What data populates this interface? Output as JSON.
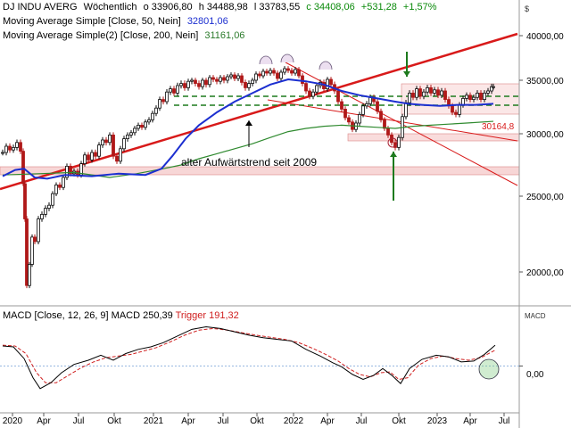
{
  "header": {
    "title": "DJ INDU AVERG",
    "period": "Wöchentlich",
    "open": "o 33906,80",
    "high": "h 34488,98",
    "low": "l 33783,55",
    "close": "c 34408,06",
    "change": "+531,28",
    "change_pct": "+1,57%",
    "ma1_label": "Moving Average Simple [Close, 50, Nein]",
    "ma1_value": "32801,06",
    "ma2_label": "Moving Average Simple(2) [Close, 200, Nein]",
    "ma2_value": "31161,06",
    "currency": "$"
  },
  "annotations": {
    "trend_text": "alter Aufwärtstrend seit 2009",
    "support_value": "30164,8"
  },
  "macd": {
    "label": "MACD [Close, 12, 26, 9]",
    "macd_text": "MACD 250,39",
    "trigger_text": "Trigger 191,32",
    "axis_label": "MACD",
    "zero_label": "0,00"
  },
  "chart_data": {
    "type": "candlestick",
    "x_ticks": [
      "2020",
      "Apr",
      "Jul",
      "Okt",
      "2021",
      "Apr",
      "Jul",
      "Okt",
      "2022",
      "Apr",
      "Jul",
      "Okt",
      "2023",
      "Apr",
      "Jul"
    ],
    "y_ticks": [
      "40000,00",
      "35000,00",
      "30000,00",
      "25000,00",
      "20000,00"
    ],
    "y_tick_values": [
      40000,
      35000,
      30000,
      25000,
      20000
    ],
    "ylim": [
      16000,
      42500
    ],
    "close_path": [
      [
        0,
        28500
      ],
      [
        4,
        29000
      ],
      [
        8,
        28700
      ],
      [
        12,
        28900
      ],
      [
        16,
        29300
      ],
      [
        20,
        28600
      ],
      [
        23,
        26000
      ],
      [
        25,
        23500
      ],
      [
        27,
        19200
      ],
      [
        30,
        20500
      ],
      [
        33,
        22300
      ],
      [
        36,
        22000
      ],
      [
        40,
        23500
      ],
      [
        44,
        23800
      ],
      [
        48,
        24200
      ],
      [
        52,
        24400
      ],
      [
        56,
        25200
      ],
      [
        60,
        25900
      ],
      [
        64,
        25700
      ],
      [
        68,
        26500
      ],
      [
        72,
        27400
      ],
      [
        76,
        26800
      ],
      [
        80,
        27000
      ],
      [
        84,
        26700
      ],
      [
        88,
        27600
      ],
      [
        92,
        28300
      ],
      [
        96,
        27900
      ],
      [
        100,
        28500
      ],
      [
        104,
        28200
      ],
      [
        108,
        29100
      ],
      [
        112,
        29500
      ],
      [
        116,
        29300
      ],
      [
        120,
        29900
      ],
      [
        124,
        28200
      ],
      [
        128,
        27800
      ],
      [
        132,
        28800
      ],
      [
        136,
        29600
      ],
      [
        140,
        29900
      ],
      [
        144,
        30100
      ],
      [
        148,
        30500
      ],
      [
        152,
        30800
      ],
      [
        156,
        30600
      ],
      [
        160,
        31100
      ],
      [
        164,
        31300
      ],
      [
        168,
        31900
      ],
      [
        172,
        32400
      ],
      [
        176,
        33200
      ],
      [
        180,
        33000
      ],
      [
        184,
        33900
      ],
      [
        188,
        34200
      ],
      [
        192,
        33800
      ],
      [
        196,
        34500
      ],
      [
        200,
        34700
      ],
      [
        204,
        34300
      ],
      [
        208,
        34900
      ],
      [
        212,
        35000
      ],
      [
        216,
        34700
      ],
      [
        220,
        34400
      ],
      [
        224,
        35000
      ],
      [
        228,
        34600
      ],
      [
        232,
        35300
      ],
      [
        236,
        35100
      ],
      [
        240,
        34900
      ],
      [
        244,
        35300
      ],
      [
        248,
        35000
      ],
      [
        252,
        35400
      ],
      [
        256,
        35600
      ],
      [
        260,
        35200
      ],
      [
        264,
        35500
      ],
      [
        268,
        34800
      ],
      [
        272,
        34300
      ],
      [
        276,
        34700
      ],
      [
        280,
        35000
      ],
      [
        284,
        35700
      ],
      [
        288,
        35500
      ],
      [
        292,
        36000
      ],
      [
        296,
        35800
      ],
      [
        300,
        36100
      ],
      [
        304,
        35800
      ],
      [
        308,
        35200
      ],
      [
        312,
        35900
      ],
      [
        316,
        36300
      ],
      [
        320,
        36100
      ],
      [
        324,
        35800
      ],
      [
        328,
        36200
      ],
      [
        332,
        35500
      ],
      [
        336,
        34700
      ],
      [
        340,
        34000
      ],
      [
        344,
        33500
      ],
      [
        348,
        33900
      ],
      [
        352,
        34500
      ],
      [
        356,
        34800
      ],
      [
        360,
        34200
      ],
      [
        364,
        35100
      ],
      [
        368,
        34600
      ],
      [
        372,
        34000
      ],
      [
        376,
        33000
      ],
      [
        380,
        32300
      ],
      [
        384,
        31500
      ],
      [
        388,
        31100
      ],
      [
        392,
        30400
      ],
      [
        396,
        31000
      ],
      [
        400,
        31800
      ],
      [
        404,
        32600
      ],
      [
        408,
        32800
      ],
      [
        412,
        33400
      ],
      [
        416,
        33000
      ],
      [
        420,
        32100
      ],
      [
        424,
        31300
      ],
      [
        428,
        30500
      ],
      [
        432,
        29900
      ],
      [
        436,
        29300
      ],
      [
        440,
        28900
      ],
      [
        444,
        29700
      ],
      [
        448,
        31600
      ],
      [
        452,
        32900
      ],
      [
        456,
        33800
      ],
      [
        460,
        33400
      ],
      [
        464,
        34200
      ],
      [
        468,
        33500
      ],
      [
        472,
        33900
      ],
      [
        476,
        34300
      ],
      [
        480,
        33800
      ],
      [
        484,
        34100
      ],
      [
        488,
        33600
      ],
      [
        492,
        34000
      ],
      [
        496,
        33200
      ],
      [
        500,
        32600
      ],
      [
        504,
        32000
      ],
      [
        508,
        31800
      ],
      [
        512,
        32700
      ],
      [
        516,
        33300
      ],
      [
        520,
        33600
      ],
      [
        524,
        33200
      ],
      [
        528,
        33400
      ],
      [
        532,
        33800
      ],
      [
        536,
        33200
      ],
      [
        540,
        33800
      ],
      [
        544,
        34000
      ],
      [
        548,
        34400
      ],
      [
        550,
        34400
      ]
    ],
    "ma50": [
      [
        0,
        26600
      ],
      [
        14,
        27100
      ],
      [
        24,
        27200
      ],
      [
        36,
        26500
      ],
      [
        50,
        26400
      ],
      [
        70,
        26700
      ],
      [
        100,
        26600
      ],
      [
        130,
        26800
      ],
      [
        160,
        26700
      ],
      [
        178,
        27200
      ],
      [
        190,
        28200
      ],
      [
        205,
        29600
      ],
      [
        220,
        30800
      ],
      [
        240,
        32000
      ],
      [
        260,
        33000
      ],
      [
        280,
        33800
      ],
      [
        300,
        34600
      ],
      [
        320,
        35100
      ],
      [
        340,
        34900
      ],
      [
        360,
        34600
      ],
      [
        380,
        34000
      ],
      [
        400,
        33600
      ],
      [
        420,
        33300
      ],
      [
        440,
        33000
      ],
      [
        455,
        32800
      ],
      [
        470,
        32700
      ],
      [
        490,
        32600
      ],
      [
        510,
        32700
      ],
      [
        530,
        32700
      ],
      [
        550,
        32801
      ]
    ],
    "ma200": [
      [
        0,
        26700
      ],
      [
        40,
        26800
      ],
      [
        80,
        26900
      ],
      [
        120,
        26500
      ],
      [
        150,
        26800
      ],
      [
        180,
        27200
      ],
      [
        200,
        27500
      ],
      [
        220,
        28000
      ],
      [
        240,
        28400
      ],
      [
        260,
        28800
      ],
      [
        280,
        29200
      ],
      [
        300,
        29700
      ],
      [
        320,
        30200
      ],
      [
        340,
        30500
      ],
      [
        360,
        30700
      ],
      [
        380,
        30800
      ],
      [
        400,
        30700
      ],
      [
        420,
        30600
      ],
      [
        440,
        30500
      ],
      [
        460,
        30700
      ],
      [
        480,
        30800
      ],
      [
        500,
        30900
      ],
      [
        520,
        31000
      ],
      [
        550,
        31161
      ]
    ],
    "macd": [
      [
        0,
        240
      ],
      [
        12,
        230
      ],
      [
        24,
        90
      ],
      [
        34,
        -140
      ],
      [
        42,
        -270
      ],
      [
        54,
        -200
      ],
      [
        66,
        -80
      ],
      [
        80,
        20
      ],
      [
        96,
        70
      ],
      [
        110,
        130
      ],
      [
        124,
        70
      ],
      [
        138,
        150
      ],
      [
        152,
        200
      ],
      [
        166,
        230
      ],
      [
        180,
        280
      ],
      [
        196,
        360
      ],
      [
        212,
        440
      ],
      [
        228,
        470
      ],
      [
        244,
        450
      ],
      [
        260,
        410
      ],
      [
        276,
        370
      ],
      [
        292,
        340
      ],
      [
        308,
        320
      ],
      [
        324,
        300
      ],
      [
        340,
        200
      ],
      [
        356,
        120
      ],
      [
        370,
        40
      ],
      [
        380,
        -10
      ],
      [
        392,
        -100
      ],
      [
        404,
        -160
      ],
      [
        416,
        -110
      ],
      [
        426,
        -30
      ],
      [
        436,
        -110
      ],
      [
        446,
        -210
      ],
      [
        456,
        -30
      ],
      [
        470,
        80
      ],
      [
        486,
        130
      ],
      [
        500,
        110
      ],
      [
        514,
        50
      ],
      [
        528,
        60
      ],
      [
        540,
        140
      ],
      [
        552,
        250
      ]
    ],
    "trigger": [
      [
        0,
        250
      ],
      [
        14,
        240
      ],
      [
        26,
        150
      ],
      [
        38,
        -80
      ],
      [
        48,
        -200
      ],
      [
        60,
        -200
      ],
      [
        74,
        -110
      ],
      [
        88,
        -20
      ],
      [
        102,
        50
      ],
      [
        116,
        100
      ],
      [
        130,
        120
      ],
      [
        144,
        140
      ],
      [
        158,
        180
      ],
      [
        172,
        220
      ],
      [
        188,
        290
      ],
      [
        204,
        370
      ],
      [
        220,
        430
      ],
      [
        236,
        450
      ],
      [
        252,
        430
      ],
      [
        268,
        400
      ],
      [
        284,
        370
      ],
      [
        300,
        345
      ],
      [
        316,
        320
      ],
      [
        332,
        280
      ],
      [
        348,
        210
      ],
      [
        362,
        140
      ],
      [
        376,
        60
      ],
      [
        388,
        -30
      ],
      [
        400,
        -100
      ],
      [
        412,
        -130
      ],
      [
        424,
        -80
      ],
      [
        434,
        -70
      ],
      [
        444,
        -160
      ],
      [
        454,
        -140
      ],
      [
        466,
        10
      ],
      [
        480,
        90
      ],
      [
        494,
        120
      ],
      [
        508,
        90
      ],
      [
        522,
        70
      ],
      [
        536,
        100
      ],
      [
        552,
        191
      ]
    ],
    "macd_ylim": [
      -550,
      700
    ],
    "series": [
      {
        "name": "Moving Average Simple [Close, 50, Nein]",
        "last": 32801.06
      },
      {
        "name": "Moving Average Simple(2) [Close, 200, Nein]",
        "last": 31161.06
      }
    ]
  },
  "colors": {
    "candle_up": "#0a0a0a",
    "candle_down": "#b01818",
    "ma50": "#1c2fd0",
    "ma200": "#2f8a2f",
    "trend_red": "#d81a1a",
    "support_green": "#1d7a1d",
    "zone_fill": "#f7d6d6",
    "macd_line": "#000000",
    "trigger_line": "#d02020"
  }
}
